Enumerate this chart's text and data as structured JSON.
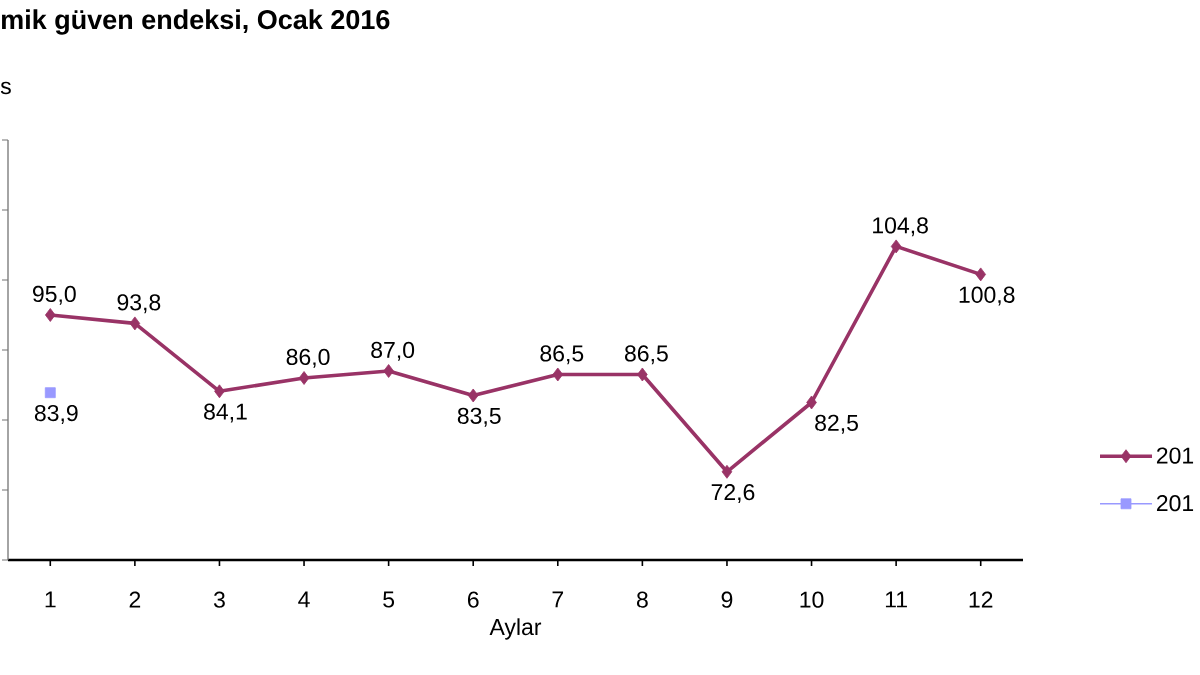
{
  "chart_data": {
    "type": "line",
    "title": "mik güven endeksi, Ocak 2016",
    "ylabel": "s",
    "xlabel": "Aylar",
    "categories": [
      "1",
      "2",
      "3",
      "4",
      "5",
      "6",
      "7",
      "8",
      "9",
      "10",
      "11",
      "12"
    ],
    "series": [
      {
        "name": "201",
        "color": "#993366",
        "marker": "diamond",
        "values": [
          95.0,
          93.8,
          84.1,
          86.0,
          87.0,
          83.5,
          86.5,
          86.5,
          72.6,
          82.5,
          104.8,
          100.8
        ],
        "value_labels": [
          "95,0",
          "93,8",
          "84,1",
          "86,0",
          "87,0",
          "83,5",
          "86,5",
          "86,5",
          "72,6",
          "82,5",
          "104,8",
          "100,8"
        ]
      },
      {
        "name": "201",
        "color": "#9999ff",
        "marker": "square",
        "values": [
          83.9,
          null,
          null,
          null,
          null,
          null,
          null,
          null,
          null,
          null,
          null,
          null
        ],
        "value_labels": [
          "83,9",
          null,
          null,
          null,
          null,
          null,
          null,
          null,
          null,
          null,
          null,
          null
        ]
      }
    ],
    "ylim": [
      60,
      120
    ],
    "yticks": [
      {
        "value": 60,
        "label": null
      },
      {
        "value": 70,
        "label": null
      },
      {
        "value": 80,
        "label": null
      },
      {
        "value": 90,
        "label": null
      },
      {
        "value": 100,
        "label": null
      },
      {
        "value": 110,
        "label": null
      },
      {
        "value": 120,
        "label": null
      }
    ],
    "tick_labels": "x",
    "legend": "right"
  }
}
